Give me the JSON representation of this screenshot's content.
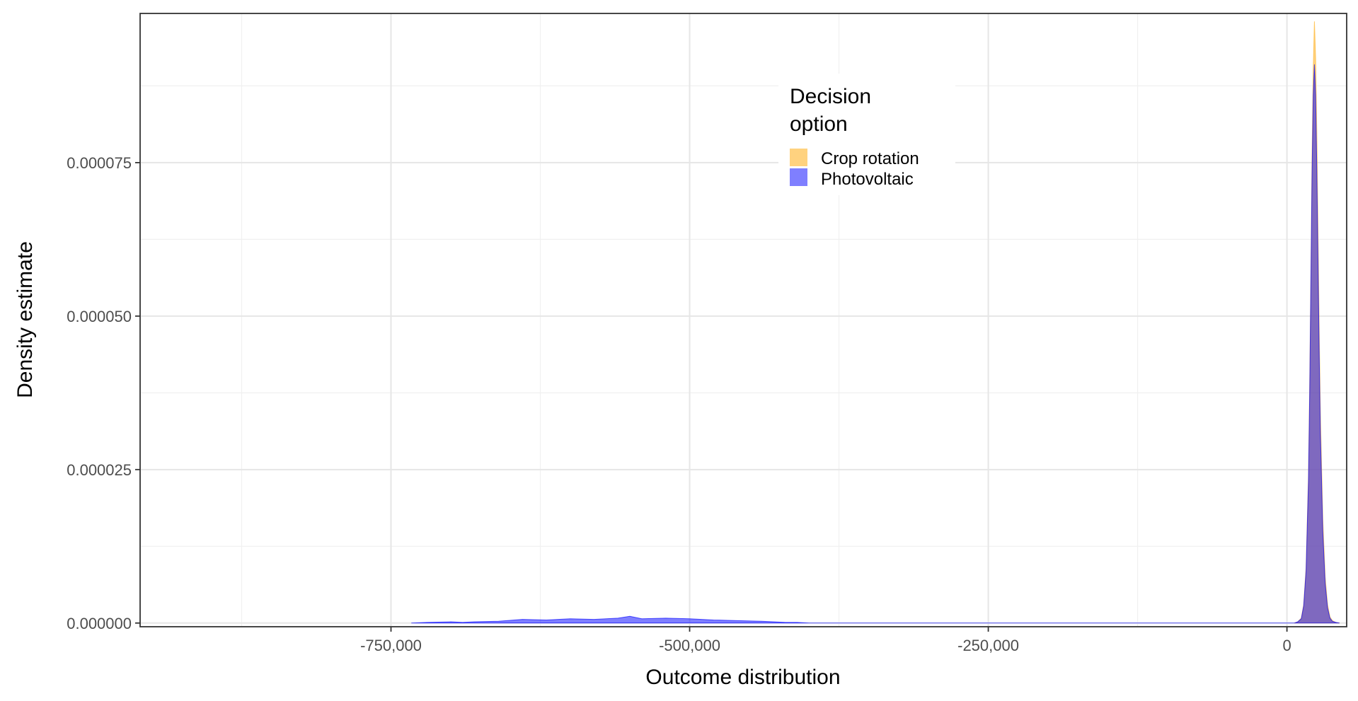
{
  "chart_data": {
    "type": "area",
    "xlabel": "Outcome distribution",
    "ylabel": "Density estimate",
    "xlim": [
      -960000,
      50000
    ],
    "ylim": [
      -6e-07,
      9.93e-05
    ],
    "x_ticks": [
      -750000,
      -500000,
      -250000,
      0
    ],
    "x_tick_labels": [
      "-750,000",
      "-500,000",
      "-250,000",
      "0"
    ],
    "x_minor_ticks": [
      -875000,
      -625000,
      -375000,
      -125000
    ],
    "y_ticks": [
      0,
      2.5e-05,
      5e-05,
      7.5e-05
    ],
    "y_tick_labels": [
      "0.000000",
      "0.000025",
      "0.000050",
      "0.000075"
    ],
    "y_minor_ticks": [
      1.25e-05,
      3.75e-05,
      6.25e-05,
      8.75e-05
    ],
    "grid": true,
    "legend": {
      "title_lines": [
        "Decision",
        "option"
      ],
      "placement": "top-center"
    },
    "series": [
      {
        "name": "Crop rotation",
        "color": "#FFC04D",
        "opacity": 0.72,
        "x": [
          6000,
          9000,
          12000,
          14000,
          16000,
          18000,
          19000,
          20000,
          21000,
          22000,
          23000,
          24000,
          25000,
          26000,
          27000,
          28000,
          30000,
          32000,
          34000,
          36000,
          38000,
          41000,
          44000
        ],
        "y": [
          0,
          2e-07,
          8e-07,
          3e-06,
          9e-06,
          2.4e-05,
          3.8e-05,
          5.6e-05,
          7.6e-05,
          9e-05,
          9.8e-05,
          9.2e-05,
          8e-05,
          6.4e-05,
          4.8e-05,
          3.4e-05,
          1.7e-05,
          7.5e-06,
          3e-06,
          1e-06,
          4e-07,
          1e-07,
          0
        ]
      },
      {
        "name": "Photovoltaic",
        "color": "#0000FF",
        "opacity": 0.5,
        "x": [
          -733000,
          -720000,
          -700000,
          -690000,
          -680000,
          -660000,
          -640000,
          -620000,
          -600000,
          -580000,
          -560000,
          -550000,
          -540000,
          -520000,
          -500000,
          -480000,
          -460000,
          -440000,
          -430000,
          -420000,
          -410000,
          -400000,
          -30000,
          6000,
          9000,
          12000,
          14000,
          16000,
          18000,
          19000,
          20000,
          21000,
          22000,
          23000,
          24000,
          25000,
          26000,
          27000,
          28000,
          30000,
          32000,
          34000,
          36000,
          38000,
          41000,
          44000
        ],
        "y": [
          0,
          1e-07,
          2e-07,
          1e-07,
          2e-07,
          3e-07,
          6e-07,
          5e-07,
          7e-07,
          6e-07,
          8e-07,
          1.1e-06,
          7e-07,
          8e-07,
          7e-07,
          5e-07,
          4e-07,
          3e-07,
          2e-07,
          1e-07,
          1e-07,
          0,
          0,
          0,
          2e-07,
          7e-07,
          2.8e-06,
          8.5e-06,
          2.3e-05,
          3.7e-05,
          5.5e-05,
          7.3e-05,
          8.6e-05,
          9.1e-05,
          8.6e-05,
          7.4e-05,
          5.9e-05,
          4.4e-05,
          3.1e-05,
          1.5e-05,
          6.5e-06,
          2.5e-06,
          8e-07,
          3e-07,
          1e-07,
          0
        ]
      }
    ]
  }
}
